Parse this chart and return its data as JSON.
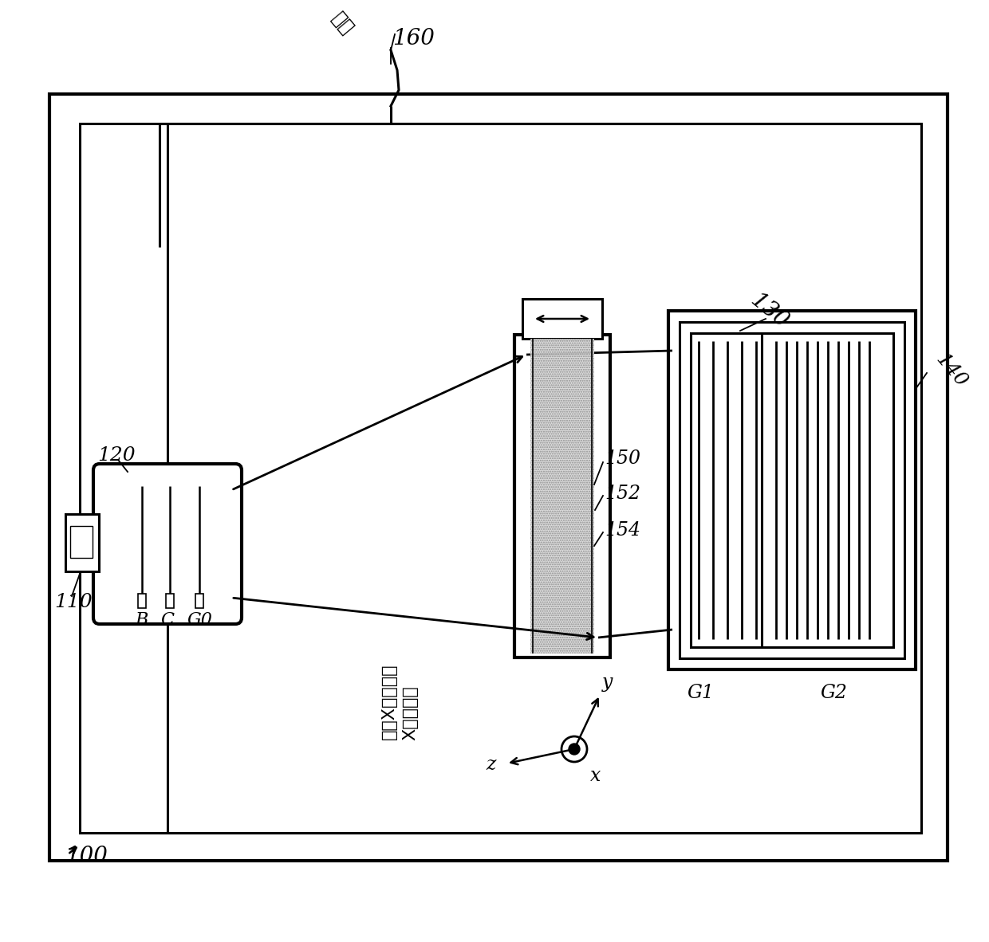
{
  "bg_color": "#ffffff",
  "line_color": "#000000",
  "label_100": "100",
  "label_110": "110",
  "label_120": "120",
  "label_130": "130",
  "label_140": "140",
  "label_150": "150",
  "label_152": "152",
  "label_154": "154",
  "label_160": "160",
  "label_B": "B",
  "label_C": "C",
  "label_G0": "G0",
  "label_G1": "G1",
  "label_G2": "G2",
  "label_jieshou": "接管",
  "label_scan_line1": "沿着X方向扫描",
  "label_scan_line2": "X射线成束",
  "label_y": "y",
  "label_z": "z",
  "label_x": "x",
  "figw": 12.4,
  "figh": 11.82,
  "dpi": 100
}
